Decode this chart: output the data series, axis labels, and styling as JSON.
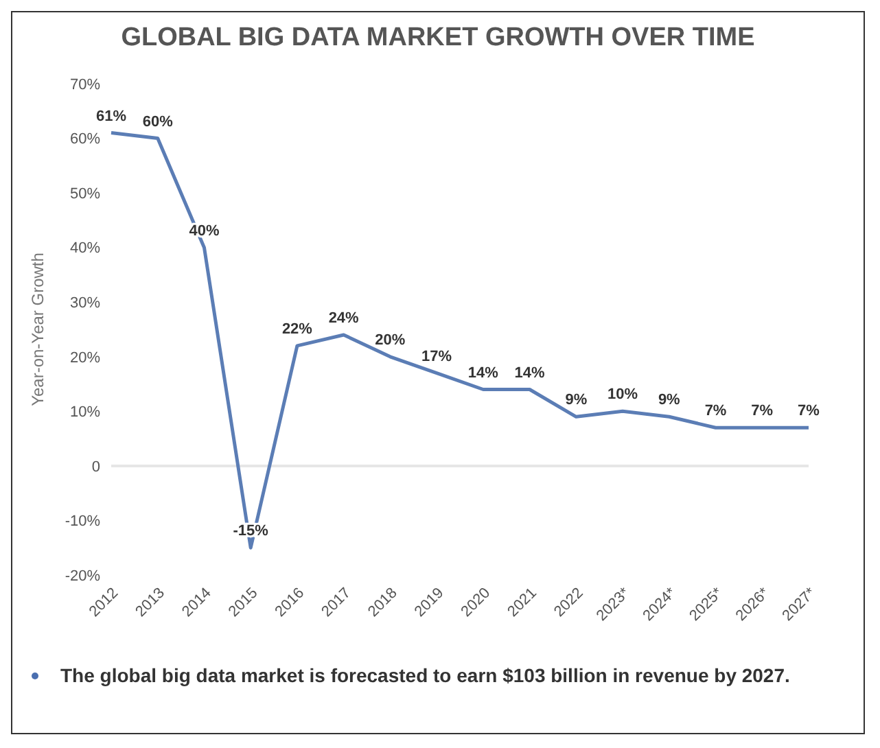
{
  "chart_data": {
    "type": "line",
    "title": "GLOBAL BIG DATA MARKET GROWTH OVER TIME",
    "ylabel": "Year-on-Year Growth",
    "categories": [
      "2012",
      "2013",
      "2014",
      "2015",
      "2016",
      "2017",
      "2018",
      "2019",
      "2020",
      "2021",
      "2022",
      "2023*",
      "2024*",
      "2025*",
      "2026*",
      "2027*"
    ],
    "series": [
      {
        "color": "#5b7db5",
        "values": [
          61,
          60,
          40,
          -15,
          22,
          24,
          20,
          17,
          14,
          14,
          9,
          10,
          9,
          7,
          7,
          7
        ],
        "value_labels": [
          "61%",
          "60%",
          "40%",
          "-15%",
          "22%",
          "24%",
          "20%",
          "17%",
          "14%",
          "14%",
          "9%",
          "10%",
          "9%",
          "7%",
          "7%",
          "7%"
        ]
      }
    ],
    "ylim": [
      -20,
      70
    ],
    "yticks": [
      {
        "value": -20,
        "label": "-20%"
      },
      {
        "value": -10,
        "label": "-10%"
      },
      {
        "value": 0,
        "label": "0"
      },
      {
        "value": 10,
        "label": "10%"
      },
      {
        "value": 20,
        "label": "20%"
      },
      {
        "value": 30,
        "label": "30%"
      },
      {
        "value": 40,
        "label": "40%"
      },
      {
        "value": 50,
        "label": "50%"
      },
      {
        "value": 60,
        "label": "60%"
      },
      {
        "value": 70,
        "label": "70%"
      }
    ],
    "ref_lines": [
      {
        "axis": "y",
        "value": 0,
        "color": "#e6e6e6"
      }
    ],
    "grid": false,
    "legend": false,
    "marker": "none",
    "line_style": "solid",
    "annotations": [
      "The global big data market is forecasted to earn $103 billion in revenue by 2027."
    ]
  }
}
